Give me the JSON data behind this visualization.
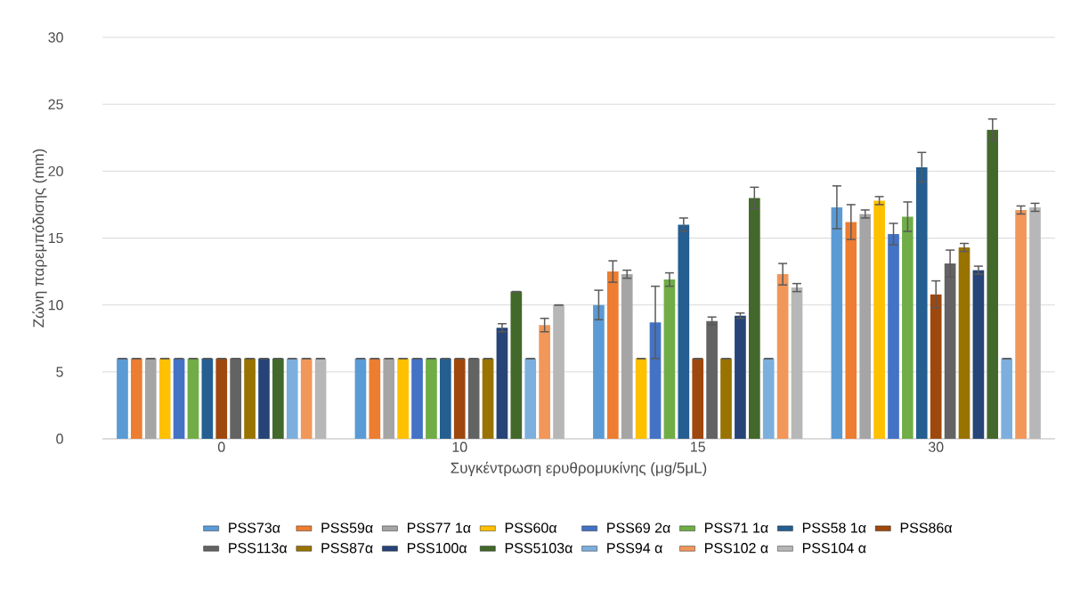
{
  "chart_data": {
    "type": "bar",
    "xlabel": "Συγκέντρωση ερυθρομυκίνης (μg/5μL)",
    "ylabel": "Ζώνη παρεμπόδισης (mm)",
    "categories": [
      "0",
      "10",
      "15",
      "30"
    ],
    "ylim": [
      0,
      30
    ],
    "yticks": [
      0,
      5,
      10,
      15,
      20,
      25,
      30
    ],
    "grid": "y",
    "legend": "bottom",
    "series": [
      {
        "name": "PSS73α",
        "color": "#5b9bd5",
        "values": [
          6,
          6,
          10,
          17.3
        ],
        "errors": [
          0,
          0,
          1.1,
          1.6
        ]
      },
      {
        "name": "PSS59α",
        "color": "#ed7d31",
        "values": [
          6,
          6,
          12.5,
          16.2
        ],
        "errors": [
          0,
          0,
          0.8,
          1.3
        ]
      },
      {
        "name": "PSS77 1α",
        "color": "#a5a5a5",
        "values": [
          6,
          6,
          12.3,
          16.8
        ],
        "errors": [
          0,
          0,
          0.3,
          0.3
        ]
      },
      {
        "name": "PSS60α",
        "color": "#ffc000",
        "values": [
          6,
          6,
          6,
          17.8
        ],
        "errors": [
          0,
          0,
          0,
          0.3
        ]
      },
      {
        "name": "PSS69 2α",
        "color": "#4472c4",
        "values": [
          6,
          6,
          8.7,
          15.3
        ],
        "errors": [
          0,
          0,
          2.7,
          0.8
        ]
      },
      {
        "name": "PSS71 1α",
        "color": "#70ad47",
        "values": [
          6,
          6,
          11.9,
          16.6
        ],
        "errors": [
          0,
          0,
          0.5,
          1.1
        ]
      },
      {
        "name": "PSS58 1α",
        "color": "#255e91",
        "values": [
          6,
          6,
          16,
          20.3
        ],
        "errors": [
          0,
          0,
          0.5,
          1.1
        ]
      },
      {
        "name": "PSS86α",
        "color": "#9e480e",
        "values": [
          6,
          6,
          6,
          10.8
        ],
        "errors": [
          0,
          0,
          0,
          1.0
        ]
      },
      {
        "name": "PSS113α",
        "color": "#636363",
        "values": [
          6,
          6,
          8.8,
          13.1
        ],
        "errors": [
          0,
          0,
          0.3,
          1.0
        ]
      },
      {
        "name": "PSS87α",
        "color": "#997300",
        "values": [
          6,
          6,
          6,
          14.3
        ],
        "errors": [
          0,
          0,
          0,
          0.3
        ]
      },
      {
        "name": "PSS100α",
        "color": "#264478",
        "values": [
          6,
          8.3,
          9.2,
          12.6
        ],
        "errors": [
          0,
          0.3,
          0.2,
          0.3
        ]
      },
      {
        "name": "PSS5103α",
        "color": "#43682b",
        "values": [
          6,
          11,
          18,
          23.1
        ],
        "errors": [
          0,
          0,
          0.8,
          0.8
        ]
      },
      {
        "name": "PSS94 α",
        "color": "#7cafdd",
        "values": [
          6,
          6,
          6,
          6
        ],
        "errors": [
          0,
          0,
          0,
          0
        ]
      },
      {
        "name": "PSS102 α",
        "color": "#f1975a",
        "values": [
          6,
          8.5,
          12.3,
          17.1
        ],
        "errors": [
          0,
          0.5,
          0.8,
          0.3
        ]
      },
      {
        "name": "PSS104 α",
        "color": "#b7b7b7",
        "values": [
          6,
          10,
          11.3,
          17.3
        ],
        "errors": [
          0,
          0,
          0.3,
          0.3
        ]
      }
    ]
  }
}
